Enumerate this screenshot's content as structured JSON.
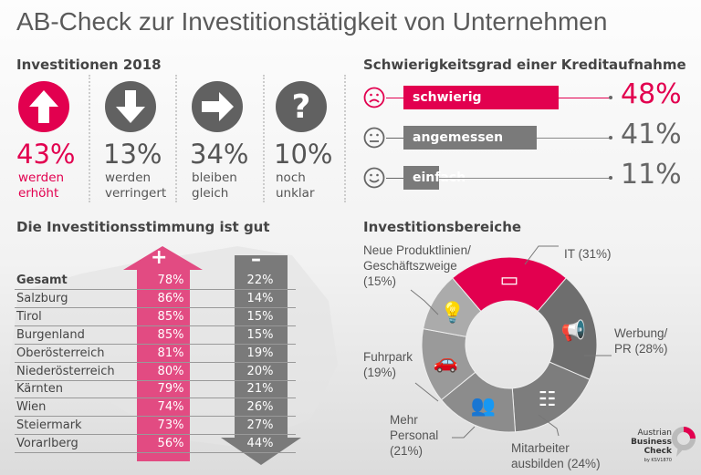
{
  "title": "AB-Check zur Investitionstätigkeit von Unternehmen",
  "investitionen": {
    "heading": "Investitionen 2018",
    "items": [
      {
        "icon": "arrow-up-icon",
        "value": "43%",
        "label1": "werden",
        "label2": "erhöht",
        "color": "#e2004f"
      },
      {
        "icon": "arrow-down-icon",
        "value": "13%",
        "label1": "werden",
        "label2": "verringert",
        "color": "#616161"
      },
      {
        "icon": "arrow-right-icon",
        "value": "34%",
        "label1": "bleiben",
        "label2": "gleich",
        "color": "#616161"
      },
      {
        "icon": "question-icon",
        "value": "10%",
        "label1": "noch",
        "label2": "unklar",
        "color": "#616161"
      }
    ]
  },
  "kredit": {
    "heading": "Schwierigkeitsgrad einer Kreditaufnahme",
    "items": [
      {
        "icon": "sad-face-icon",
        "label": "schwierig",
        "value": "48%",
        "pct": 48,
        "color": "#e2004f"
      },
      {
        "icon": "neutral-face-icon",
        "label": "angemessen",
        "value": "41%",
        "pct": 41,
        "color": "#7a7a7a"
      },
      {
        "icon": "happy-face-icon",
        "label": "einfach",
        "value": "11%",
        "pct": 11,
        "color": "#7a7a7a"
      }
    ]
  },
  "stimmung": {
    "heading": "Die Investitionsstimmung ist gut",
    "plus": "+",
    "minus": "–",
    "rows": [
      {
        "region": "Gesamt",
        "pos": "78%",
        "neg": "22%"
      },
      {
        "region": "Salzburg",
        "pos": "86%",
        "neg": "14%"
      },
      {
        "region": "Tirol",
        "pos": "85%",
        "neg": "15%"
      },
      {
        "region": "Burgenland",
        "pos": "85%",
        "neg": "15%"
      },
      {
        "region": "Oberösterreich",
        "pos": "81%",
        "neg": "19%"
      },
      {
        "region": "Niederösterreich",
        "pos": "80%",
        "neg": "20%"
      },
      {
        "region": "Kärnten",
        "pos": "79%",
        "neg": "21%"
      },
      {
        "region": "Wien",
        "pos": "74%",
        "neg": "26%"
      },
      {
        "region": "Steiermark",
        "pos": "73%",
        "neg": "27%"
      },
      {
        "region": "Vorarlberg",
        "pos": "56%",
        "neg": "44%"
      }
    ]
  },
  "bereiche": {
    "heading": "Investitionsbereiche"
  },
  "chart_data": [
    {
      "type": "bar",
      "title": "Schwierigkeitsgrad einer Kreditaufnahme",
      "categories": [
        "schwierig",
        "angemessen",
        "einfach"
      ],
      "values": [
        48,
        41,
        11
      ]
    },
    {
      "type": "pie",
      "title": "Investitionsbereiche",
      "slices": [
        {
          "label": "IT (31%)",
          "value": 31,
          "icon": "devices-icon",
          "color": "#e2004f"
        },
        {
          "label": "Werbung/ PR (28%)",
          "value": 28,
          "icon": "megaphone-icon",
          "color": "#6e6e6e"
        },
        {
          "label": "Mitarbeiter ausbilden (24%)",
          "value": 24,
          "icon": "training-icon",
          "color": "#7d7d7d"
        },
        {
          "label": "Mehr Personal (21%)",
          "value": 21,
          "icon": "people-icon",
          "color": "#8c8c8c"
        },
        {
          "label": "Fuhrpark (19%)",
          "value": 19,
          "icon": "car-icon",
          "color": "#9a9a9a"
        },
        {
          "label": "Neue Produktlinien/ Geschäftszweige (15%)",
          "value": 15,
          "icon": "lightbulb-icon",
          "color": "#ababab"
        }
      ]
    }
  ],
  "logo": {
    "line1": "Austrian",
    "line2": "Business",
    "line3": "Check",
    "line4": "by KSV1870"
  }
}
